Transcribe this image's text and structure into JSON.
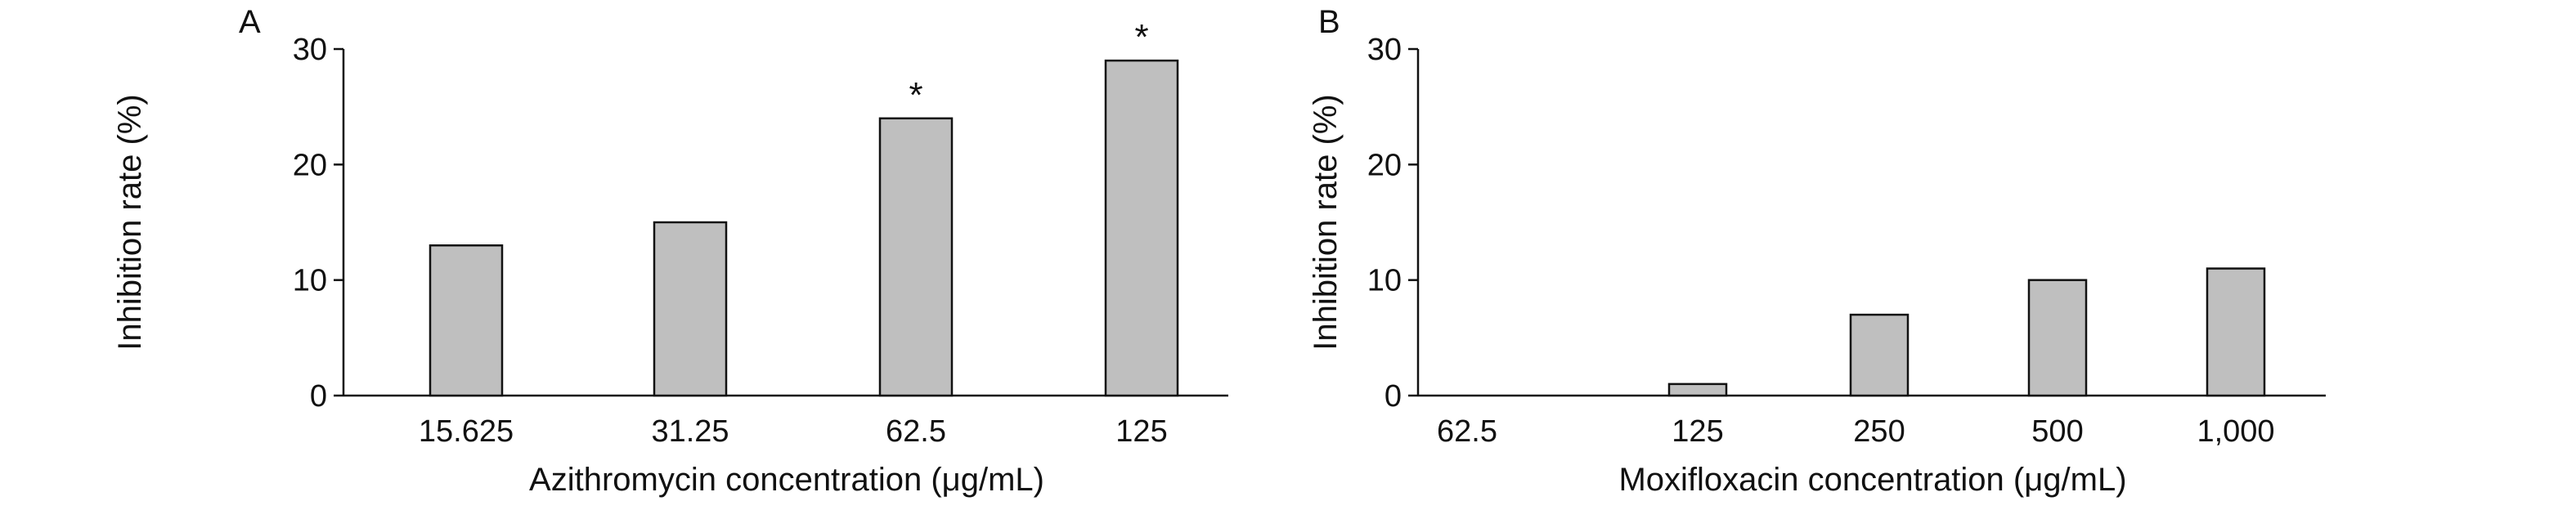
{
  "chart_data": [
    {
      "panel": "A",
      "type": "bar",
      "categories": [
        "15.625",
        "31.25",
        "62.5",
        "125"
      ],
      "values": [
        13,
        15,
        24,
        29
      ],
      "annotations": [
        "",
        "",
        "*",
        "*"
      ],
      "xlabel": "Azithromycin concentration (μg/mL)",
      "ylabel": "Inhibition rate (%)",
      "ylim": [
        0,
        30
      ],
      "yticks": [
        "0",
        "10",
        "20",
        "30"
      ],
      "bar_color": "#bfbfbf",
      "grid": false
    },
    {
      "panel": "B",
      "type": "bar",
      "categories": [
        "62.5",
        "125",
        "250",
        "500",
        "1,000"
      ],
      "values": [
        0,
        1,
        7,
        10,
        11
      ],
      "annotations": [
        "",
        "",
        "",
        "",
        ""
      ],
      "xlabel": "Moxifloxacin concentration (μg/mL)",
      "ylabel": "Inhibition rate (%)",
      "ylim": [
        0,
        30
      ],
      "yticks": [
        "0",
        "10",
        "20",
        "30"
      ],
      "bar_color": "#bfbfbf",
      "grid": false
    }
  ]
}
